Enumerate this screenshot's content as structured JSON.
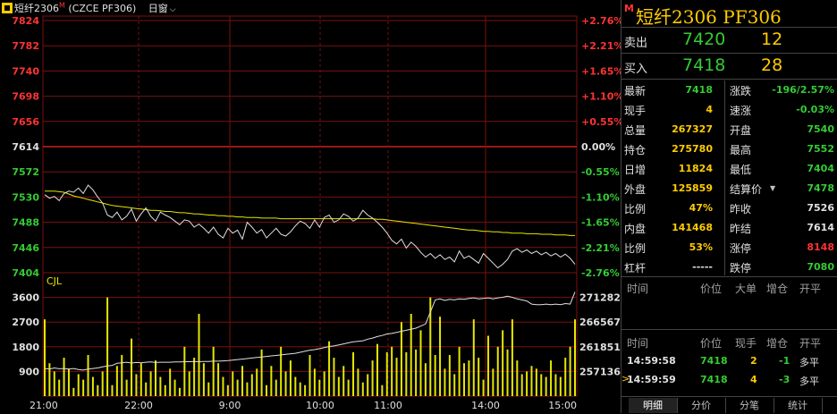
{
  "header": {
    "symbol_label": "短纤2306",
    "symbol_mark": "M",
    "contract": "(CZCE PF306)",
    "period_select": "日窗"
  },
  "chart_data": {
    "type": "line",
    "price_ticks": [
      {
        "price": "7824",
        "pct": "+2.76%",
        "cls": "up"
      },
      {
        "price": "7782",
        "pct": "+2.21%",
        "cls": "up"
      },
      {
        "price": "7740",
        "pct": "+1.65%",
        "cls": "up"
      },
      {
        "price": "7698",
        "pct": "+1.10%",
        "cls": "up"
      },
      {
        "price": "7656",
        "pct": "+0.55%",
        "cls": "up"
      },
      {
        "price": "7614",
        "pct": "0.00%",
        "cls": "flat"
      },
      {
        "price": "7572",
        "pct": "-0.55%",
        "cls": "down"
      },
      {
        "price": "7530",
        "pct": "-1.10%",
        "cls": "down"
      },
      {
        "price": "7488",
        "pct": "-1.65%",
        "cls": "down"
      },
      {
        "price": "7446",
        "pct": "-2.21%",
        "cls": "down"
      },
      {
        "price": "7404",
        "pct": "-2.76%",
        "cls": "down"
      }
    ],
    "volume_ticks": [
      "3600",
      "2700",
      "1800",
      "900"
    ],
    "oi_ticks": [
      "271282",
      "266567",
      "261851",
      "257136"
    ],
    "time_labels": [
      "21:00",
      "22:00",
      "9:00",
      "10:00",
      "11:00",
      "14:00",
      "15:00"
    ],
    "indicator_label": "CJL",
    "price_range": [
      7404,
      7824
    ],
    "volume_range": [
      0,
      4500
    ],
    "oi_range": [
      252420,
      275998
    ],
    "price_series": [
      7534,
      7528,
      7531,
      7524,
      7536,
      7540,
      7538,
      7545,
      7536,
      7550,
      7542,
      7530,
      7520,
      7500,
      7496,
      7505,
      7492,
      7498,
      7510,
      7490,
      7502,
      7512,
      7498,
      7490,
      7505,
      7500,
      7496,
      7490,
      7484,
      7492,
      7490,
      7480,
      7485,
      7478,
      7470,
      7480,
      7468,
      7462,
      7478,
      7470,
      7475,
      7460,
      7488,
      7480,
      7470,
      7476,
      7462,
      7470,
      7478,
      7468,
      7465,
      7472,
      7482,
      7490,
      7486,
      7478,
      7492,
      7480,
      7496,
      7500,
      7488,
      7492,
      7502,
      7498,
      7490,
      7495,
      7508,
      7500,
      7495,
      7488,
      7480,
      7470,
      7458,
      7452,
      7460,
      7445,
      7455,
      7448,
      7438,
      7430,
      7436,
      7428,
      7434,
      7426,
      7430,
      7422,
      7440,
      7428,
      7432,
      7426,
      7420,
      7436,
      7428,
      7420,
      7412,
      7418,
      7426,
      7440,
      7444,
      7438,
      7442,
      7436,
      7440,
      7434,
      7438,
      7432,
      7436,
      7430,
      7435,
      7428,
      7418
    ],
    "avg_series": [
      7540,
      7540,
      7540,
      7539,
      7538,
      7535,
      7532,
      7530,
      7528,
      7526,
      7524,
      7522,
      7520,
      7518,
      7516,
      7515,
      7514,
      7513,
      7512,
      7511,
      7510,
      7509,
      7508,
      7508,
      7507,
      7506,
      7506,
      7505,
      7504,
      7504,
      7503,
      7502,
      7502,
      7501,
      7500,
      7500,
      7499,
      7499,
      7498,
      7498,
      7497,
      7497,
      7496,
      7496,
      7496,
      7495,
      7495,
      7495,
      7495,
      7494,
      7494,
      7494,
      7494,
      7494,
      7494,
      7494,
      7494,
      7494,
      7494,
      7494,
      7494,
      7494,
      7494,
      7494,
      7494,
      7494,
      7494,
      7494,
      7494,
      7493,
      7493,
      7492,
      7491,
      7490,
      7489,
      7488,
      7487,
      7486,
      7485,
      7484,
      7483,
      7482,
      7481,
      7480,
      7479,
      7478,
      7477,
      7476,
      7475,
      7475,
      7474,
      7473,
      7473,
      7472,
      7472,
      7471,
      7471,
      7470,
      7470,
      7470,
      7469,
      7469,
      7469,
      7468,
      7468,
      7468,
      7467,
      7467,
      7467,
      7466,
      7466
    ],
    "oi_series": [
      257700,
      257600,
      257800,
      257650,
      257700,
      257600,
      257700,
      257500,
      257400,
      257600,
      257700,
      257800,
      258000,
      258200,
      258300,
      258700,
      258800,
      258900,
      258750,
      258850,
      258800,
      258900,
      258950,
      258850,
      258900,
      258900,
      258900,
      258950,
      258950,
      259000,
      259000,
      259050,
      259000,
      259050,
      259050,
      259100,
      259100,
      259150,
      259200,
      259300,
      259400,
      259500,
      259600,
      259700,
      259800,
      259900,
      260000,
      260100,
      260200,
      260300,
      260400,
      260500,
      260600,
      260800,
      261000,
      261200,
      261300,
      261500,
      261700,
      261900,
      262000,
      262200,
      262400,
      262600,
      262800,
      262900,
      263000,
      263300,
      263500,
      263800,
      264000,
      264300,
      264400,
      264600,
      264800,
      265000,
      265200,
      265400,
      265800,
      266200,
      268500,
      270800,
      271000,
      270700,
      270900,
      270800,
      271000,
      270900,
      271100,
      271200,
      271000,
      271100,
      271200,
      271000,
      271200,
      271300,
      271500,
      271300,
      271000,
      270800,
      270600,
      270000,
      269900,
      269900,
      270000,
      269900,
      270000,
      269900,
      270100,
      270000,
      272300
    ],
    "volume_series": [
      2800,
      1200,
      900,
      600,
      1400,
      1000,
      300,
      800,
      600,
      1500,
      700,
      400,
      900,
      3600,
      400,
      1100,
      1500,
      600,
      2100,
      800,
      1200,
      500,
      900,
      1300,
      700,
      400,
      1000,
      600,
      300,
      1800,
      900,
      1400,
      3000,
      1200,
      500,
      1800,
      1200,
      700,
      400,
      900,
      600,
      1100,
      500,
      800,
      1000,
      1700,
      400,
      1100,
      600,
      1800,
      900,
      1300,
      700,
      500,
      400,
      1500,
      1000,
      600,
      900,
      2000,
      1400,
      700,
      1100,
      600,
      1600,
      1000,
      500,
      800,
      1300,
      1900,
      400,
      1600,
      1800,
      1400,
      2700,
      1600,
      3000,
      1700,
      2400,
      1200,
      3600,
      1500,
      2900,
      1000,
      1500,
      800,
      1800,
      1200,
      1300,
      2800,
      1400,
      600,
      2200,
      1000,
      1800,
      2400,
      1700,
      2800,
      1300,
      800,
      900,
      1100,
      1000,
      800,
      700,
      1300,
      800,
      700,
      1400,
      1800,
      2800
    ]
  },
  "panel": {
    "mark": "M",
    "title": "短纤2306  PF306",
    "ask": {
      "label": "卖出",
      "price": "7420",
      "vol": "12"
    },
    "bid": {
      "label": "买入",
      "price": "7418",
      "vol": "28"
    },
    "quotes": [
      {
        "l": "最新",
        "lv": "7418",
        "lc": "#33cc33",
        "r": "涨跌",
        "rv": "-196/2.57%",
        "rc": "#33cc33"
      },
      {
        "l": "现手",
        "lv": "4",
        "lc": "#ffcc00",
        "r": "速涨",
        "rv": "-0.03%",
        "rc": "#33cc33"
      },
      {
        "l": "总量",
        "lv": "267327",
        "lc": "#ffcc00",
        "r": "开盘",
        "rv": "7540",
        "rc": "#33cc33"
      },
      {
        "l": "持仓",
        "lv": "275780",
        "lc": "#ffcc00",
        "r": "最高",
        "rv": "7552",
        "rc": "#33cc33"
      },
      {
        "l": "日增",
        "lv": "11824",
        "lc": "#ffcc00",
        "r": "最低",
        "rv": "7404",
        "rc": "#33cc33"
      },
      {
        "l": "外盘",
        "lv": "125859",
        "lc": "#ffcc00",
        "r": "结算价",
        "rv": "7478",
        "rc": "#33cc33"
      },
      {
        "l": "比例",
        "lv": "47%",
        "lc": "#ffcc00",
        "r": "昨收",
        "rv": "7526",
        "rc": "#e0e0e0"
      },
      {
        "l": "内盘",
        "lv": "141468",
        "lc": "#ffcc00",
        "r": "昨结",
        "rv": "7614",
        "rc": "#e0e0e0"
      },
      {
        "l": "比例",
        "lv": "53%",
        "lc": "#ffcc00",
        "r": "涨停",
        "rv": "8148",
        "rc": "#ff3333"
      },
      {
        "l": "杠杆",
        "lv": "-----",
        "lc": "#e0e0e0",
        "r": "跌停",
        "rv": "7080",
        "rc": "#33cc33"
      }
    ],
    "detail_head": [
      "时间",
      "价位",
      "大单",
      "增仓",
      "开平"
    ],
    "trade_head": [
      "时间",
      "价位",
      "现手",
      "增仓",
      "开平"
    ],
    "trades": [
      {
        "time": "14:59:58",
        "price": "7418",
        "vol": "2",
        "chg": "-1",
        "type": "多平"
      },
      {
        "time": "14:59:59",
        "price": "7418",
        "vol": "4",
        "chg": "-3",
        "type": "多平"
      }
    ],
    "tabs": [
      "明细",
      "分价",
      "分笔",
      "统计"
    ]
  },
  "colors": {
    "up": "#ff3333",
    "down": "#33cc33",
    "flat": "#e0e0e0",
    "grid": "#7a1010",
    "price_line": "#e0e0e0",
    "avg_line": "#e6e600",
    "volume": "#e6e600"
  }
}
